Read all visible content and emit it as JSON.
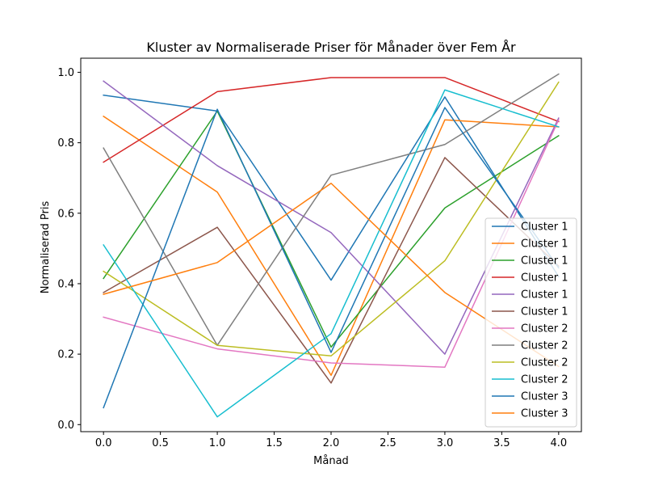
{
  "chart_data": {
    "type": "line",
    "title": "Kluster av Normaliserade Priser för Månader över Fem År",
    "xlabel": "Månad",
    "ylabel": "Normaliserad Pris",
    "xlim": [
      -0.2,
      4.2
    ],
    "ylim": [
      -0.02,
      1.04
    ],
    "xticks": [
      "0.0",
      "0.5",
      "1.0",
      "1.5",
      "2.0",
      "2.5",
      "3.0",
      "3.5",
      "4.0"
    ],
    "yticks": [
      "0.0",
      "0.2",
      "0.4",
      "0.6",
      "0.8",
      "1.0"
    ],
    "x": [
      0,
      1,
      2,
      3,
      4
    ],
    "legend_position": "lower-right",
    "series": [
      {
        "name": "Cluster 1",
        "color": "#1f77b4",
        "values": [
          0.935,
          0.89,
          0.41,
          0.93,
          0.42
        ]
      },
      {
        "name": "Cluster 1",
        "color": "#ff7f0e",
        "values": [
          0.875,
          0.66,
          0.14,
          0.865,
          0.845
        ]
      },
      {
        "name": "Cluster 1",
        "color": "#2ca02c",
        "values": [
          0.415,
          0.89,
          0.22,
          0.615,
          0.82
        ]
      },
      {
        "name": "Cluster 1",
        "color": "#d62728",
        "values": [
          0.745,
          0.945,
          0.985,
          0.985,
          0.86
        ]
      },
      {
        "name": "Cluster 1",
        "color": "#9467bd",
        "values": [
          0.975,
          0.735,
          0.545,
          0.2,
          0.87
        ]
      },
      {
        "name": "Cluster 1",
        "color": "#8c564b",
        "values": [
          0.375,
          0.56,
          0.118,
          0.758,
          0.45
        ]
      },
      {
        "name": "Cluster 2",
        "color": "#e377c2",
        "values": [
          0.305,
          0.215,
          0.175,
          0.163,
          0.865
        ]
      },
      {
        "name": "Cluster 2",
        "color": "#7f7f7f",
        "values": [
          0.785,
          0.225,
          0.708,
          0.795,
          0.995
        ]
      },
      {
        "name": "Cluster 2",
        "color": "#bcbd22",
        "values": [
          0.435,
          0.225,
          0.195,
          0.465,
          0.972
        ]
      },
      {
        "name": "Cluster 2",
        "color": "#17becf",
        "values": [
          0.51,
          0.022,
          0.258,
          0.95,
          0.845
        ]
      },
      {
        "name": "Cluster 3",
        "color": "#1f77b4",
        "values": [
          0.048,
          0.895,
          0.205,
          0.9,
          0.445
        ]
      },
      {
        "name": "Cluster 3",
        "color": "#ff7f0e",
        "values": [
          0.37,
          0.46,
          0.685,
          0.375,
          0.165
        ]
      }
    ]
  }
}
